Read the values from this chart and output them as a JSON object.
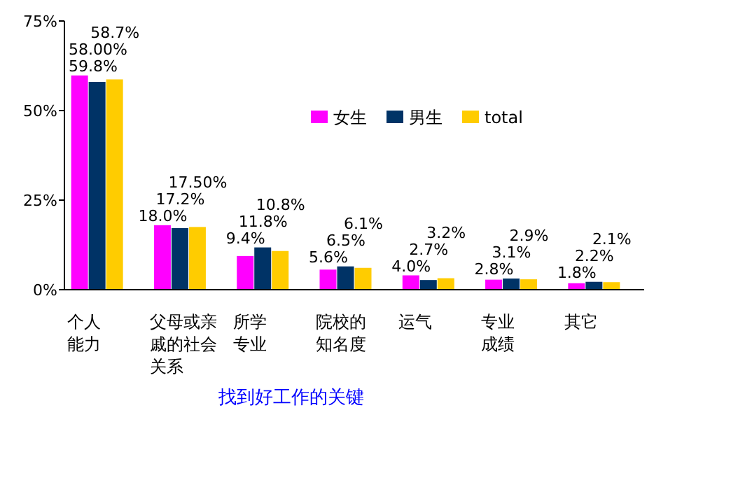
{
  "chart_data": {
    "type": "bar",
    "xlabel": "找到好工作的关键",
    "categories": [
      "个人能力",
      "父母或亲戚的社会关系",
      "所学专业",
      "院校的知名度",
      "运气",
      "专业成绩",
      "其它"
    ],
    "series": [
      {
        "name": "女生",
        "color": "#ff00ff",
        "values": [
          59.8,
          18.0,
          9.4,
          5.6,
          4.0,
          2.8,
          1.8
        ],
        "value_labels": [
          "59.8%",
          "18.0%",
          "9.4%",
          "5.6%",
          "4.0%",
          "2.8%",
          "1.8%"
        ]
      },
      {
        "name": "男生",
        "color": "#003366",
        "values": [
          58.0,
          17.2,
          11.8,
          6.5,
          2.7,
          3.1,
          2.2
        ],
        "value_labels": [
          "58.00%",
          "17.2%",
          "11.8%",
          "6.5%",
          "2.7%",
          "3.1%",
          "2.2%"
        ]
      },
      {
        "name": "total",
        "color": "#ffcc00",
        "values": [
          58.7,
          17.5,
          10.8,
          6.1,
          3.2,
          2.9,
          2.1
        ],
        "value_labels": [
          "58.7%",
          "17.50%",
          "10.8%",
          "6.1%",
          "3.2%",
          "2.9%",
          "2.1%"
        ]
      }
    ],
    "ylim": [
      0,
      75
    ],
    "yticks": [
      {
        "value": 0,
        "label": "0%"
      },
      {
        "value": 25,
        "label": "25%"
      },
      {
        "value": 50,
        "label": "50%"
      },
      {
        "value": 75,
        "label": "75%"
      }
    ],
    "legend": "top right"
  }
}
